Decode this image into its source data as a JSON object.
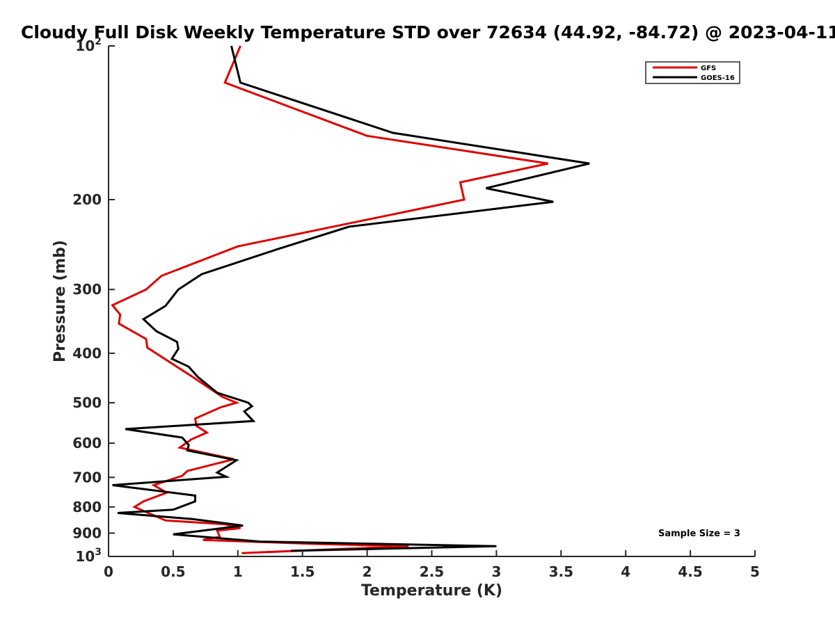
{
  "chart_data": {
    "type": "line",
    "title": "Cloudy Full Disk Weekly Temperature STD over 72634 (44.92, -84.72) @ 2023-04-11",
    "xlabel": "Temperature (K)",
    "ylabel": "Pressure (mb)",
    "xlim": [
      0,
      5
    ],
    "ylim": [
      100,
      1000
    ],
    "y_scale": "log",
    "y_reversed": true,
    "xticks": [
      0,
      0.5,
      1,
      1.5,
      2,
      2.5,
      3,
      3.5,
      4,
      4.5,
      5
    ],
    "xtick_labels": [
      "0",
      "0.5",
      "1",
      "1.5",
      "2",
      "2.5",
      "3",
      "3.5",
      "4",
      "4.5",
      "5"
    ],
    "yticks": [
      100,
      200,
      300,
      400,
      500,
      600,
      700,
      800,
      900,
      1000
    ],
    "ytick_labels": [
      {
        "base": "10",
        "exp": "2"
      },
      {
        "base": "200",
        "exp": ""
      },
      {
        "base": "300",
        "exp": ""
      },
      {
        "base": "400",
        "exp": ""
      },
      {
        "base": "500",
        "exp": ""
      },
      {
        "base": "600",
        "exp": ""
      },
      {
        "base": "700",
        "exp": ""
      },
      {
        "base": "800",
        "exp": ""
      },
      {
        "base": "900",
        "exp": ""
      },
      {
        "base": "10",
        "exp": "3"
      }
    ],
    "grid": false,
    "legend_position": "top-right",
    "annotation": "Sample Size = 3",
    "series": [
      {
        "name": "GFS",
        "color": "#dd0000",
        "points": [
          [
            1.02,
            100
          ],
          [
            0.9,
            118
          ],
          [
            2.0,
            150
          ],
          [
            3.4,
            170
          ],
          [
            2.72,
            185
          ],
          [
            2.75,
            200
          ],
          [
            1.0,
            247
          ],
          [
            0.41,
            282
          ],
          [
            0.29,
            300
          ],
          [
            0.03,
            322
          ],
          [
            0.09,
            336
          ],
          [
            0.08,
            350
          ],
          [
            0.29,
            375
          ],
          [
            0.3,
            390
          ],
          [
            0.65,
            445
          ],
          [
            0.88,
            487
          ],
          [
            0.99,
            500
          ],
          [
            0.87,
            510
          ],
          [
            0.67,
            537
          ],
          [
            0.68,
            555
          ],
          [
            0.76,
            572
          ],
          [
            0.64,
            590
          ],
          [
            0.55,
            612
          ],
          [
            0.97,
            645
          ],
          [
            0.61,
            680
          ],
          [
            0.57,
            695
          ],
          [
            0.35,
            725
          ],
          [
            0.45,
            750
          ],
          [
            0.27,
            780
          ],
          [
            0.2,
            800
          ],
          [
            0.44,
            850
          ],
          [
            0.9,
            865
          ],
          [
            1.02,
            880
          ],
          [
            0.84,
            890
          ],
          [
            0.86,
            915
          ],
          [
            0.73,
            928
          ],
          [
            1.6,
            945
          ],
          [
            2.32,
            955
          ],
          [
            1.03,
            985
          ]
        ]
      },
      {
        "name": "GOES-16",
        "color": "#000000",
        "points": [
          [
            0.95,
            100
          ],
          [
            1.02,
            118
          ],
          [
            2.2,
            148
          ],
          [
            3.72,
            170
          ],
          [
            2.92,
            190
          ],
          [
            3.44,
            202
          ],
          [
            1.86,
            226
          ],
          [
            1.31,
            250
          ],
          [
            0.72,
            280
          ],
          [
            0.54,
            300
          ],
          [
            0.44,
            323
          ],
          [
            0.27,
            343
          ],
          [
            0.37,
            362
          ],
          [
            0.53,
            380
          ],
          [
            0.54,
            392
          ],
          [
            0.49,
            410
          ],
          [
            0.62,
            425
          ],
          [
            0.69,
            445
          ],
          [
            0.84,
            478
          ],
          [
            1.08,
            500
          ],
          [
            1.11,
            508
          ],
          [
            1.05,
            520
          ],
          [
            1.12,
            543
          ],
          [
            0.13,
            563
          ],
          [
            0.57,
            585
          ],
          [
            0.62,
            605
          ],
          [
            0.61,
            620
          ],
          [
            0.99,
            648
          ],
          [
            0.84,
            685
          ],
          [
            0.91,
            698
          ],
          [
            0.03,
            725
          ],
          [
            0.67,
            760
          ],
          [
            0.67,
            780
          ],
          [
            0.5,
            810
          ],
          [
            0.07,
            822
          ],
          [
            0.65,
            845
          ],
          [
            1.04,
            870
          ],
          [
            0.5,
            905
          ],
          [
            1.17,
            935
          ],
          [
            3.0,
            955
          ],
          [
            1.41,
            975
          ]
        ]
      }
    ]
  }
}
